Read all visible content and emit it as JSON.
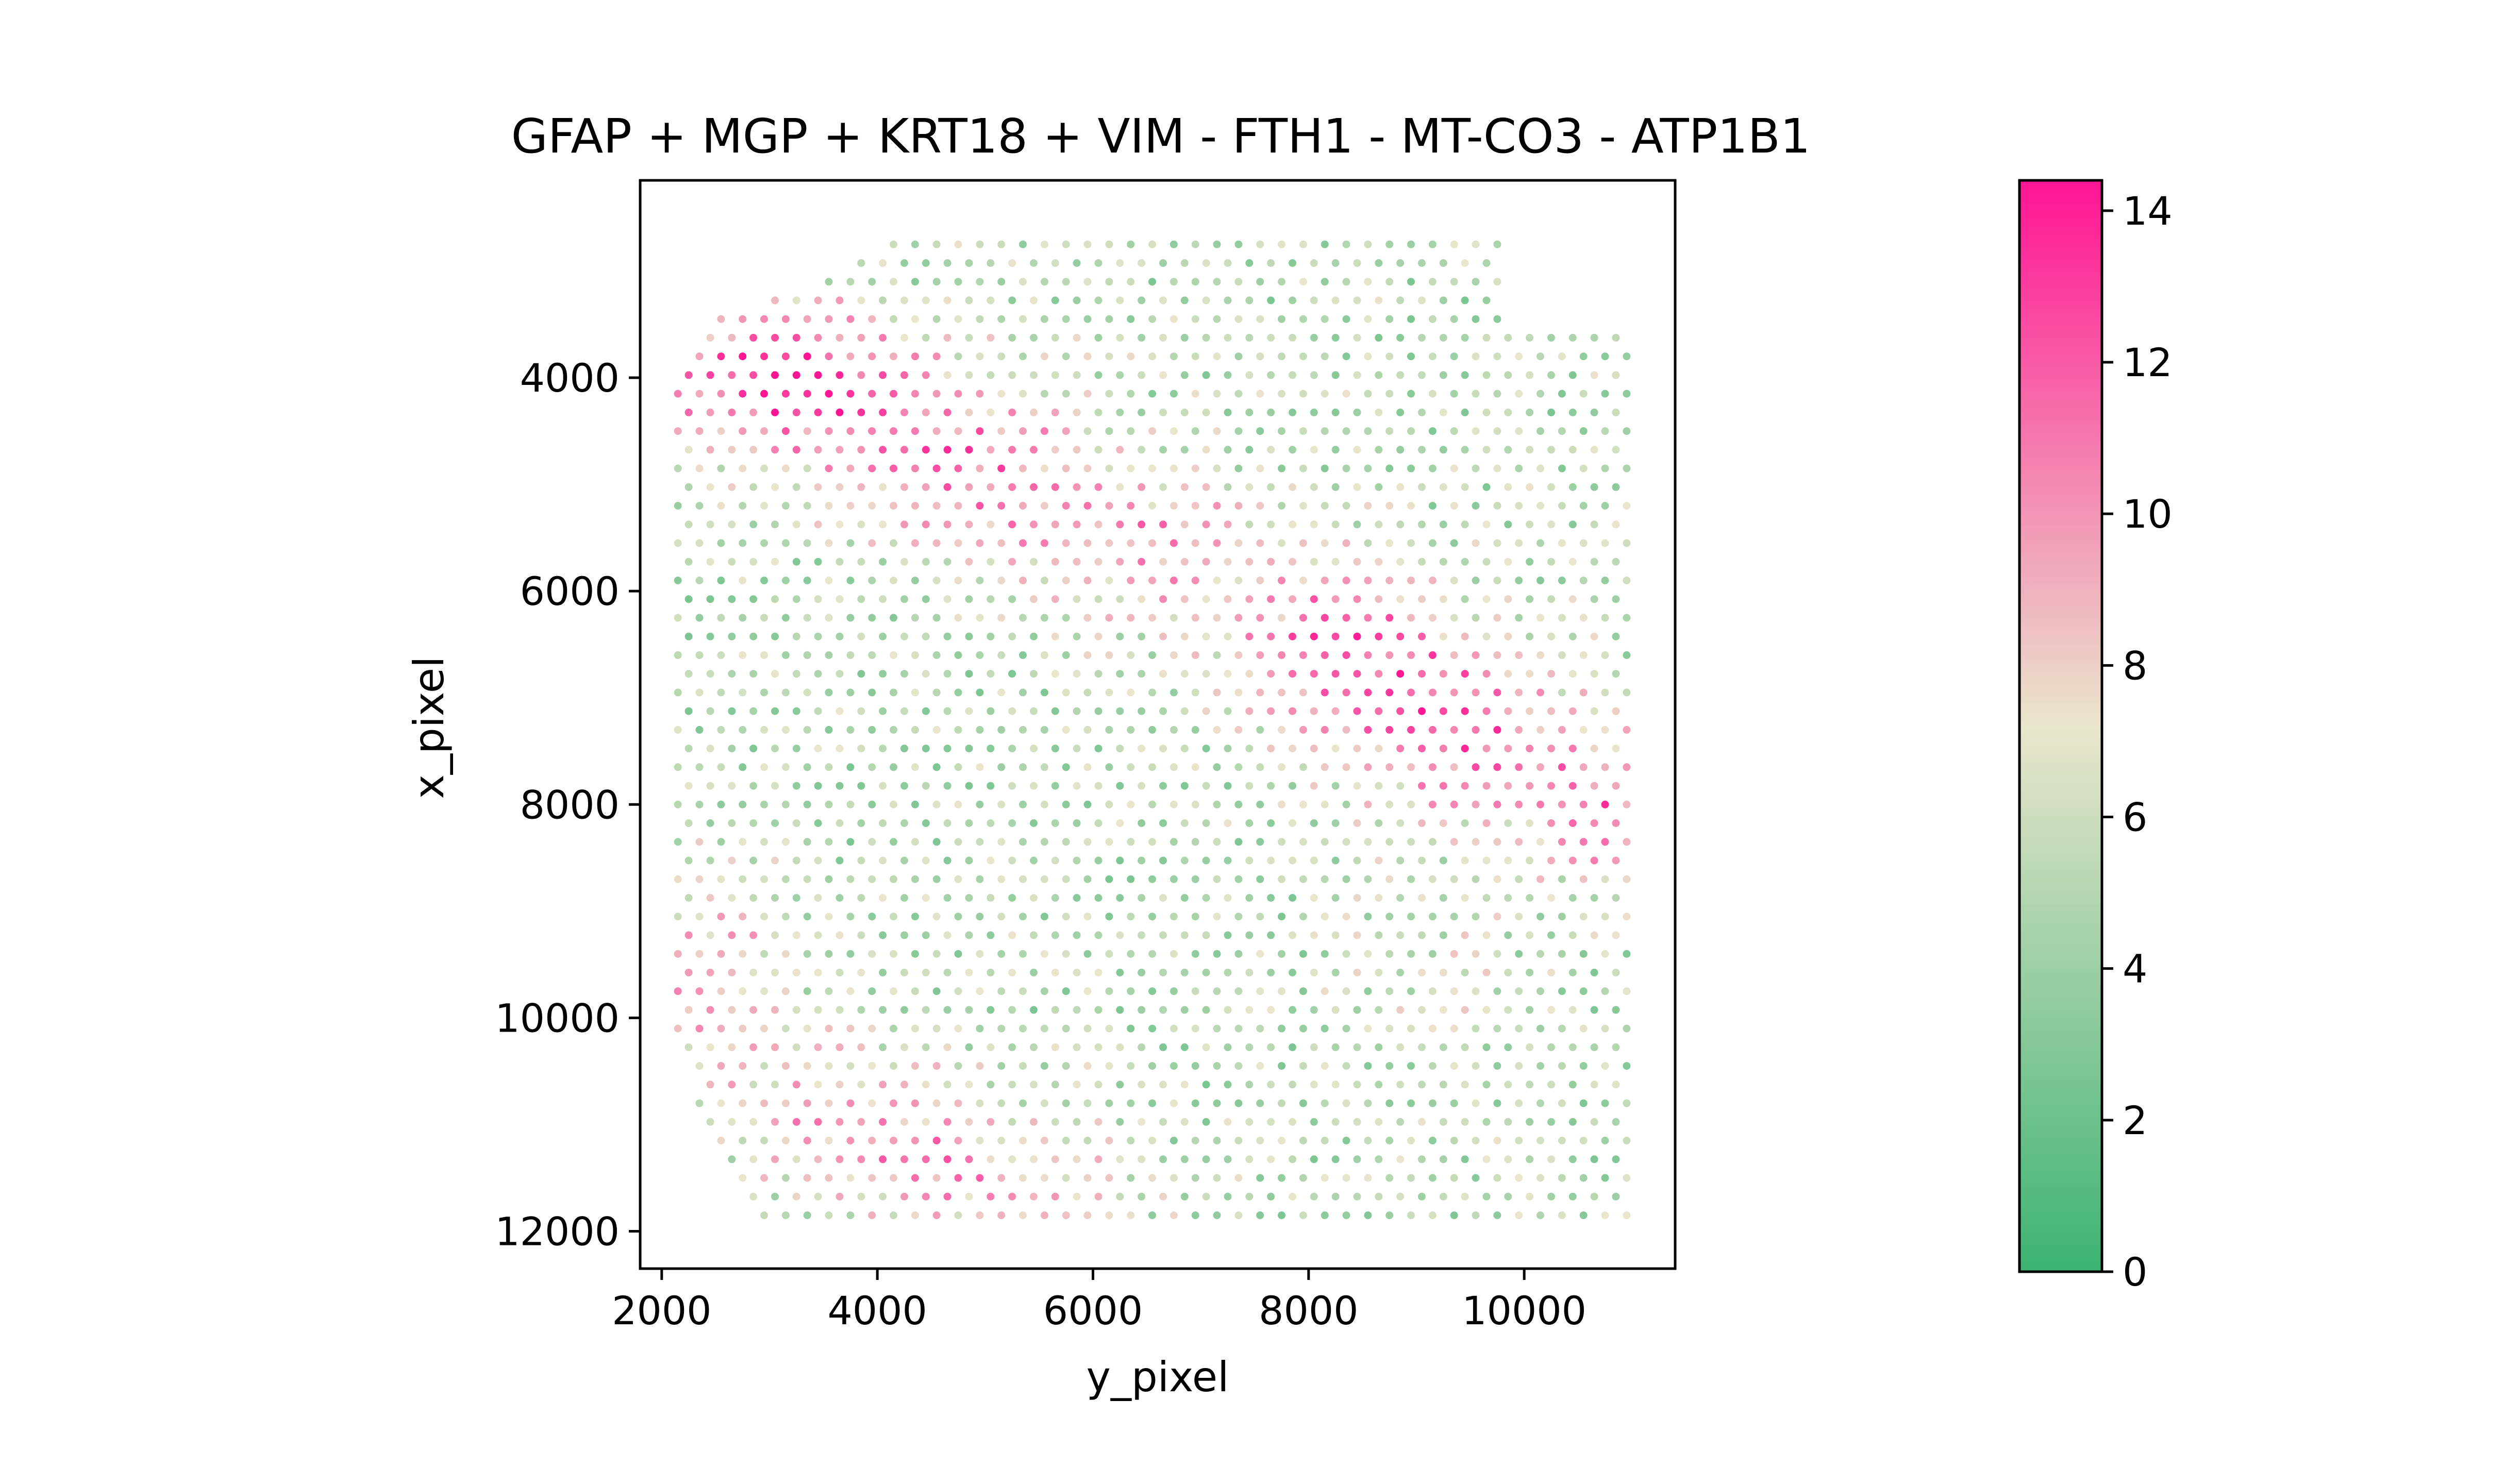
{
  "chart_data": {
    "type": "scatter",
    "title": "GFAP + MGP + KRT18 + VIM - FTH1 - MT-CO3 - ATP1B1",
    "xlabel": "y_pixel",
    "ylabel": "x_pixel",
    "xlim": [
      1800,
      11400
    ],
    "ylim": [
      12350,
      2150
    ],
    "y_inverted": true,
    "x_ticks": [
      2000,
      4000,
      6000,
      8000,
      10000
    ],
    "x_tick_labels": [
      "2000",
      "4000",
      "6000",
      "8000",
      "10000"
    ],
    "y_ticks": [
      4000,
      6000,
      8000,
      10000,
      12000
    ],
    "y_tick_labels": [
      "4000",
      "6000",
      "8000",
      "10000",
      "12000"
    ],
    "grid": false,
    "spot_grid": {
      "x_first": 2150,
      "x_last": 11050,
      "x_step": 200,
      "y_first": 2750,
      "y_last": 11900,
      "y_step": 175,
      "stagger": 100
    },
    "tissue_outline": [
      [
        4000,
        2750
      ],
      [
        9800,
        2750
      ],
      [
        9800,
        3200
      ],
      [
        10000,
        3600
      ],
      [
        10900,
        3600
      ],
      [
        11050,
        3700
      ],
      [
        11050,
        11900
      ],
      [
        2950,
        11900
      ],
      [
        2650,
        11400
      ],
      [
        2350,
        10800
      ],
      [
        2150,
        10200
      ],
      [
        2150,
        3900
      ],
      [
        2350,
        3500
      ],
      [
        2900,
        3300
      ],
      [
        3450,
        3100
      ],
      [
        4000,
        2800
      ]
    ],
    "value_field": {
      "baseline": 5.0,
      "hotspots": [
        {
          "x": 3100,
          "y": 4000,
          "amp": 8.5,
          "sx": 1200,
          "sy": 700
        },
        {
          "x": 4800,
          "y": 4800,
          "amp": 6.0,
          "sx": 1200,
          "sy": 800
        },
        {
          "x": 6500,
          "y": 5600,
          "amp": 5.0,
          "sx": 1100,
          "sy": 700
        },
        {
          "x": 8300,
          "y": 6500,
          "amp": 6.5,
          "sx": 1000,
          "sy": 800
        },
        {
          "x": 9400,
          "y": 7300,
          "amp": 6.5,
          "sx": 1000,
          "sy": 800
        },
        {
          "x": 10700,
          "y": 8000,
          "amp": 6.0,
          "sx": 700,
          "sy": 700
        },
        {
          "x": 2400,
          "y": 9600,
          "amp": 5.0,
          "sx": 700,
          "sy": 900
        },
        {
          "x": 3700,
          "y": 10900,
          "amp": 4.5,
          "sx": 1000,
          "sy": 700
        },
        {
          "x": 5000,
          "y": 11500,
          "amp": 4.5,
          "sx": 1200,
          "sy": 600
        },
        {
          "x": 9200,
          "y": 9500,
          "amp": 1.5,
          "sx": 800,
          "sy": 800
        }
      ],
      "noise": 2.4
    },
    "colorbar": {
      "vmin": 0,
      "vmax": 14.4,
      "ticks": [
        0,
        2,
        4,
        6,
        8,
        10,
        12,
        14
      ],
      "tick_labels": [
        "0",
        "2",
        "4",
        "6",
        "8",
        "10",
        "12",
        "14"
      ],
      "colors": [
        {
          "pos": 0.0,
          "color": "#3cb371"
        },
        {
          "pos": 0.5,
          "color": "#eae6cc"
        },
        {
          "pos": 1.0,
          "color": "#ff1493"
        }
      ]
    }
  }
}
